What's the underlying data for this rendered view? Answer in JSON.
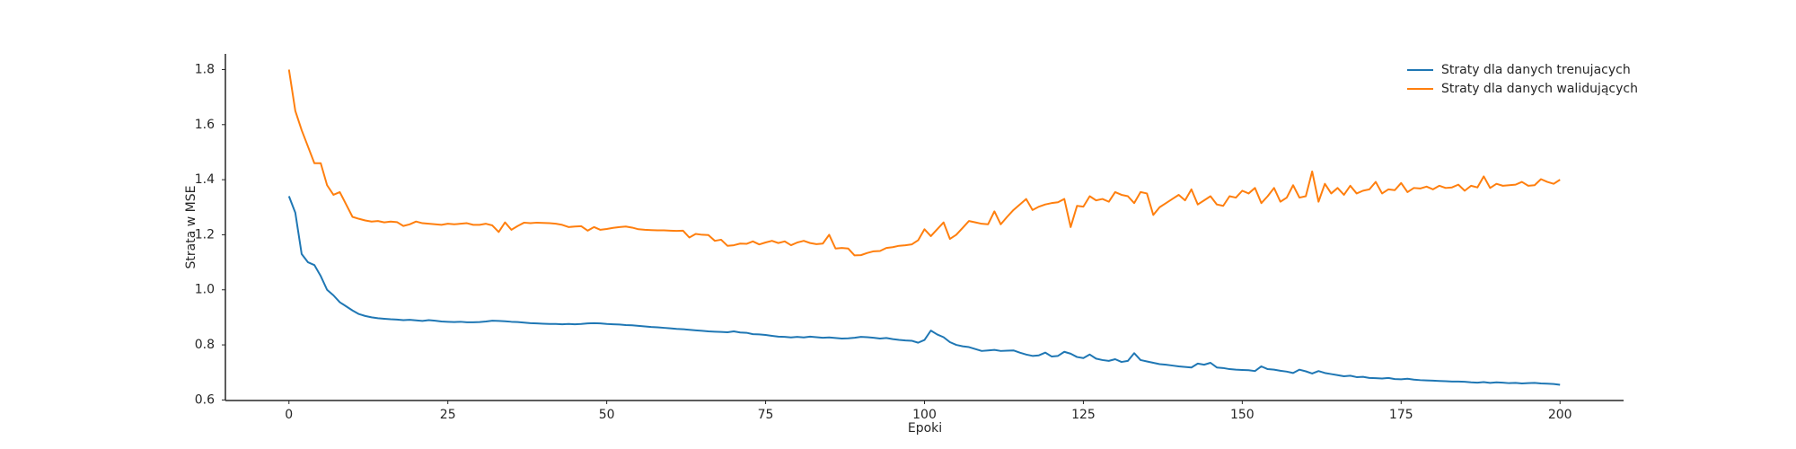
{
  "chart_data": {
    "type": "line",
    "xlabel": "Epoki",
    "ylabel": "Strata w MSE",
    "x": [
      0,
      1,
      2,
      3,
      4,
      5,
      6,
      7,
      8,
      9,
      10,
      11,
      12,
      13,
      14,
      15,
      16,
      17,
      18,
      19,
      20,
      21,
      22,
      23,
      24,
      25,
      26,
      27,
      28,
      29,
      30,
      31,
      32,
      33,
      34,
      35,
      36,
      37,
      38,
      39,
      40,
      41,
      42,
      43,
      44,
      45,
      46,
      47,
      48,
      49,
      50,
      51,
      52,
      53,
      54,
      55,
      56,
      57,
      58,
      59,
      60,
      61,
      62,
      63,
      64,
      65,
      66,
      67,
      68,
      69,
      70,
      71,
      72,
      73,
      74,
      75,
      76,
      77,
      78,
      79,
      80,
      81,
      82,
      83,
      84,
      85,
      86,
      87,
      88,
      89,
      90,
      91,
      92,
      93,
      94,
      95,
      96,
      97,
      98,
      99,
      100,
      101,
      102,
      103,
      104,
      105,
      106,
      107,
      108,
      109,
      110,
      111,
      112,
      113,
      114,
      115,
      116,
      117,
      118,
      119,
      120,
      121,
      122,
      123,
      124,
      125,
      126,
      127,
      128,
      129,
      130,
      131,
      132,
      133,
      134,
      135,
      136,
      137,
      138,
      139,
      140,
      141,
      142,
      143,
      144,
      145,
      146,
      147,
      148,
      149,
      150,
      151,
      152,
      153,
      154,
      155,
      156,
      157,
      158,
      159,
      160,
      161,
      162,
      163,
      164,
      165,
      166,
      167,
      168,
      169,
      170,
      171,
      172,
      173,
      174,
      175,
      176,
      177,
      178,
      179,
      180,
      181,
      182,
      183,
      184,
      185,
      186,
      187,
      188,
      189,
      190,
      191,
      192,
      193,
      194,
      195,
      196,
      197,
      198,
      199,
      200
    ],
    "series": [
      {
        "name": "Straty dla danych trenujacych",
        "color": "#1f77b4",
        "values": [
          1.34,
          1.28,
          1.13,
          1.1,
          1.09,
          1.05,
          1.0,
          0.98,
          0.955,
          0.94,
          0.925,
          0.912,
          0.905,
          0.9,
          0.897,
          0.895,
          0.893,
          0.892,
          0.89,
          0.891,
          0.889,
          0.887,
          0.89,
          0.888,
          0.885,
          0.884,
          0.883,
          0.884,
          0.882,
          0.882,
          0.883,
          0.885,
          0.888,
          0.887,
          0.886,
          0.884,
          0.883,
          0.881,
          0.879,
          0.878,
          0.877,
          0.876,
          0.876,
          0.875,
          0.876,
          0.875,
          0.876,
          0.878,
          0.879,
          0.878,
          0.876,
          0.875,
          0.874,
          0.872,
          0.871,
          0.869,
          0.867,
          0.865,
          0.864,
          0.862,
          0.86,
          0.858,
          0.857,
          0.855,
          0.853,
          0.851,
          0.849,
          0.848,
          0.847,
          0.846,
          0.849,
          0.845,
          0.844,
          0.839,
          0.838,
          0.836,
          0.833,
          0.83,
          0.829,
          0.827,
          0.829,
          0.827,
          0.83,
          0.828,
          0.826,
          0.827,
          0.825,
          0.823,
          0.824,
          0.826,
          0.829,
          0.828,
          0.826,
          0.823,
          0.825,
          0.821,
          0.818,
          0.816,
          0.815,
          0.808,
          0.818,
          0.852,
          0.838,
          0.828,
          0.81,
          0.8,
          0.795,
          0.792,
          0.785,
          0.778,
          0.78,
          0.782,
          0.778,
          0.779,
          0.78,
          0.772,
          0.765,
          0.76,
          0.762,
          0.772,
          0.758,
          0.76,
          0.775,
          0.768,
          0.756,
          0.752,
          0.765,
          0.75,
          0.745,
          0.742,
          0.748,
          0.738,
          0.742,
          0.77,
          0.745,
          0.74,
          0.735,
          0.73,
          0.728,
          0.725,
          0.722,
          0.72,
          0.718,
          0.732,
          0.728,
          0.735,
          0.718,
          0.716,
          0.712,
          0.71,
          0.709,
          0.708,
          0.705,
          0.722,
          0.712,
          0.71,
          0.706,
          0.703,
          0.698,
          0.71,
          0.704,
          0.696,
          0.705,
          0.698,
          0.694,
          0.69,
          0.686,
          0.688,
          0.683,
          0.684,
          0.68,
          0.679,
          0.678,
          0.68,
          0.676,
          0.675,
          0.677,
          0.674,
          0.672,
          0.671,
          0.67,
          0.669,
          0.668,
          0.667,
          0.667,
          0.666,
          0.664,
          0.663,
          0.665,
          0.662,
          0.664,
          0.663,
          0.661,
          0.662,
          0.66,
          0.661,
          0.662,
          0.66,
          0.659,
          0.658,
          0.655
        ]
      },
      {
        "name": "Straty dla danych walidujących",
        "color": "#ff7f0e",
        "values": [
          1.8,
          1.65,
          1.58,
          1.52,
          1.46,
          1.46,
          1.38,
          1.345,
          1.355,
          1.31,
          1.265,
          1.258,
          1.252,
          1.248,
          1.25,
          1.245,
          1.248,
          1.246,
          1.232,
          1.238,
          1.248,
          1.242,
          1.24,
          1.238,
          1.236,
          1.24,
          1.238,
          1.24,
          1.242,
          1.236,
          1.236,
          1.24,
          1.234,
          1.21,
          1.245,
          1.218,
          1.232,
          1.244,
          1.242,
          1.244,
          1.243,
          1.242,
          1.24,
          1.236,
          1.228,
          1.23,
          1.231,
          1.215,
          1.228,
          1.218,
          1.221,
          1.225,
          1.228,
          1.23,
          1.226,
          1.22,
          1.218,
          1.217,
          1.216,
          1.216,
          1.215,
          1.214,
          1.215,
          1.19,
          1.203,
          1.2,
          1.199,
          1.178,
          1.182,
          1.16,
          1.162,
          1.168,
          1.167,
          1.176,
          1.165,
          1.172,
          1.178,
          1.17,
          1.176,
          1.162,
          1.172,
          1.178,
          1.17,
          1.166,
          1.168,
          1.2,
          1.15,
          1.152,
          1.15,
          1.125,
          1.126,
          1.134,
          1.14,
          1.141,
          1.152,
          1.155,
          1.16,
          1.162,
          1.165,
          1.18,
          1.22,
          1.195,
          1.22,
          1.245,
          1.185,
          1.2,
          1.225,
          1.25,
          1.245,
          1.24,
          1.238,
          1.285,
          1.238,
          1.265,
          1.29,
          1.31,
          1.33,
          1.29,
          1.302,
          1.31,
          1.315,
          1.318,
          1.33,
          1.228,
          1.305,
          1.302,
          1.34,
          1.325,
          1.33,
          1.32,
          1.355,
          1.345,
          1.34,
          1.315,
          1.355,
          1.35,
          1.272,
          1.3,
          1.315,
          1.33,
          1.345,
          1.325,
          1.365,
          1.31,
          1.325,
          1.34,
          1.31,
          1.305,
          1.34,
          1.335,
          1.36,
          1.35,
          1.37,
          1.315,
          1.34,
          1.37,
          1.32,
          1.335,
          1.38,
          1.335,
          1.34,
          1.43,
          1.32,
          1.385,
          1.35,
          1.37,
          1.345,
          1.378,
          1.35,
          1.36,
          1.365,
          1.392,
          1.35,
          1.365,
          1.362,
          1.388,
          1.355,
          1.37,
          1.368,
          1.375,
          1.365,
          1.378,
          1.37,
          1.372,
          1.382,
          1.36,
          1.378,
          1.372,
          1.412,
          1.37,
          1.385,
          1.378,
          1.38,
          1.382,
          1.392,
          1.378,
          1.38,
          1.402,
          1.392,
          1.385,
          1.4
        ]
      }
    ],
    "xlim": [
      -10,
      210
    ],
    "ylim": [
      0.598,
      1.857
    ],
    "xticks": [
      0,
      25,
      50,
      75,
      100,
      125,
      150,
      175,
      200
    ],
    "yticks": [
      0.6,
      0.8,
      {
        "value": 1,
        "label": "1.0"
      },
      1.2,
      1.4,
      1.6,
      1.8
    ],
    "grid": false,
    "legend": "upper right"
  }
}
